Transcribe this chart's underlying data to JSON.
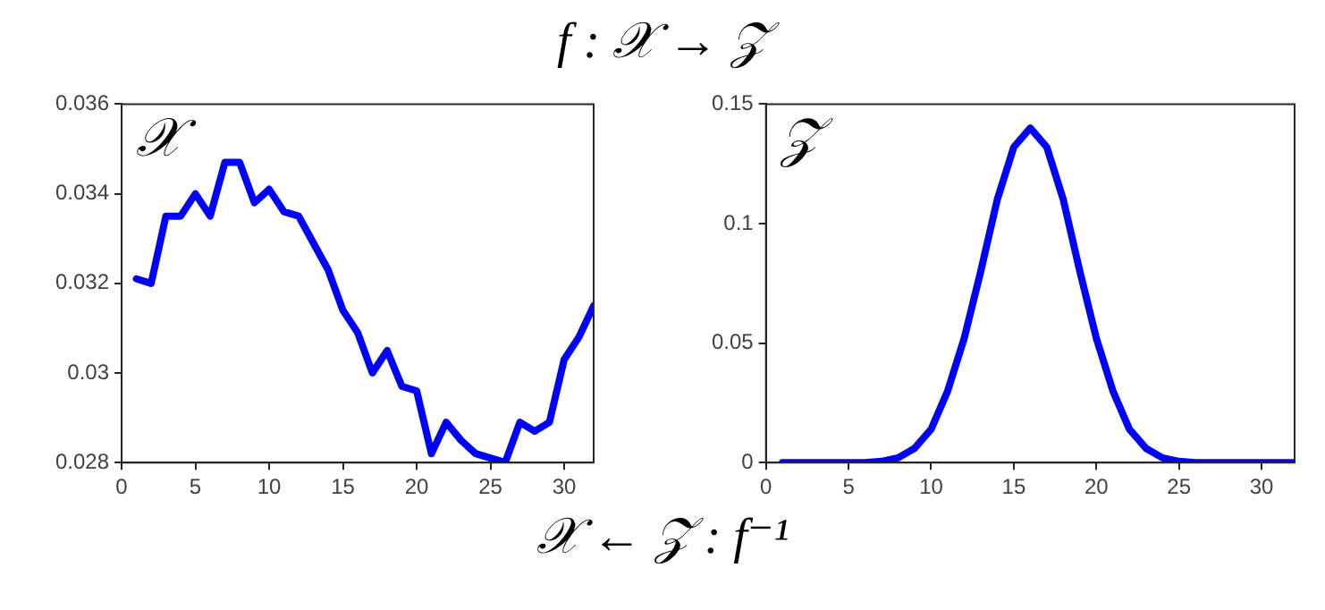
{
  "chart_data": [
    {
      "type": "line",
      "title": "f : 𝒳 → 𝒵",
      "annotations": [
        "𝒳",
        "𝒳 ← 𝒵 : f⁻¹"
      ],
      "x": [
        1,
        2,
        3,
        4,
        5,
        6,
        7,
        8,
        9,
        10,
        11,
        12,
        13,
        14,
        15,
        16,
        17,
        18,
        19,
        20,
        21,
        22,
        23,
        24,
        25,
        26,
        27,
        28,
        29,
        30,
        31,
        32
      ],
      "series": [
        {
          "color": "#0000ff",
          "values": [
            0.0321,
            0.032,
            0.0335,
            0.0335,
            0.034,
            0.0335,
            0.0347,
            0.0347,
            0.0338,
            0.0341,
            0.0336,
            0.0335,
            0.0329,
            0.0323,
            0.0314,
            0.0309,
            0.03,
            0.0305,
            0.0297,
            0.0296,
            0.0282,
            0.0289,
            0.0285,
            0.0282,
            0.0281,
            0.028,
            0.0289,
            0.0287,
            0.0289,
            0.0303,
            0.0308,
            0.0315
          ]
        }
      ],
      "xlim": [
        0,
        32
      ],
      "xticks": [
        0,
        5,
        10,
        15,
        20,
        25,
        30
      ],
      "ylim": [
        0.028,
        0.036
      ],
      "yticks": [
        0.028,
        0.03,
        0.032,
        0.034,
        0.036
      ],
      "grid": false,
      "legend": false,
      "marker": "none",
      "line_style": "solid"
    },
    {
      "type": "line",
      "annotations": [
        "𝒵"
      ],
      "x": [
        1,
        2,
        3,
        4,
        5,
        6,
        7,
        8,
        9,
        10,
        11,
        12,
        13,
        14,
        15,
        16,
        17,
        18,
        19,
        20,
        21,
        22,
        23,
        24,
        25,
        26,
        27,
        28,
        29,
        30,
        31,
        32
      ],
      "series": [
        {
          "color": "#0000ff",
          "values": [
            0,
            0,
            0,
            0,
            0,
            0,
            0.0005,
            0.002,
            0.006,
            0.014,
            0.03,
            0.052,
            0.08,
            0.11,
            0.132,
            0.14,
            0.132,
            0.11,
            0.08,
            0.052,
            0.03,
            0.014,
            0.006,
            0.002,
            0.0005,
            0,
            0,
            0,
            0,
            0,
            0,
            0
          ]
        }
      ],
      "xlim": [
        0,
        32
      ],
      "xticks": [
        0,
        5,
        10,
        15,
        20,
        25,
        30
      ],
      "ylim": [
        0,
        0.15
      ],
      "yticks": [
        0,
        0.05,
        0.1,
        0.15
      ],
      "grid": false,
      "legend": false,
      "marker": "none",
      "line_style": "solid"
    }
  ]
}
